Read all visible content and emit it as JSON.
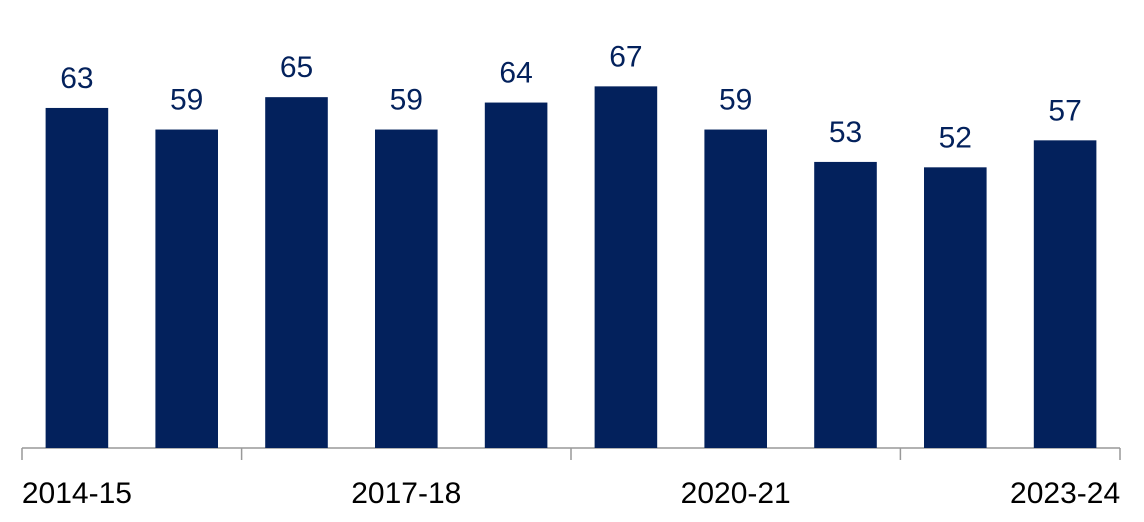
{
  "chart_data": {
    "type": "bar",
    "categories": [
      "2014-15",
      null,
      null,
      "2017-18",
      null,
      null,
      "2020-21",
      null,
      null,
      "2023-24"
    ],
    "values": [
      63,
      59,
      65,
      59,
      64,
      67,
      59,
      53,
      52,
      57
    ],
    "color": "#03215c",
    "ylim": [
      0,
      83
    ]
  }
}
